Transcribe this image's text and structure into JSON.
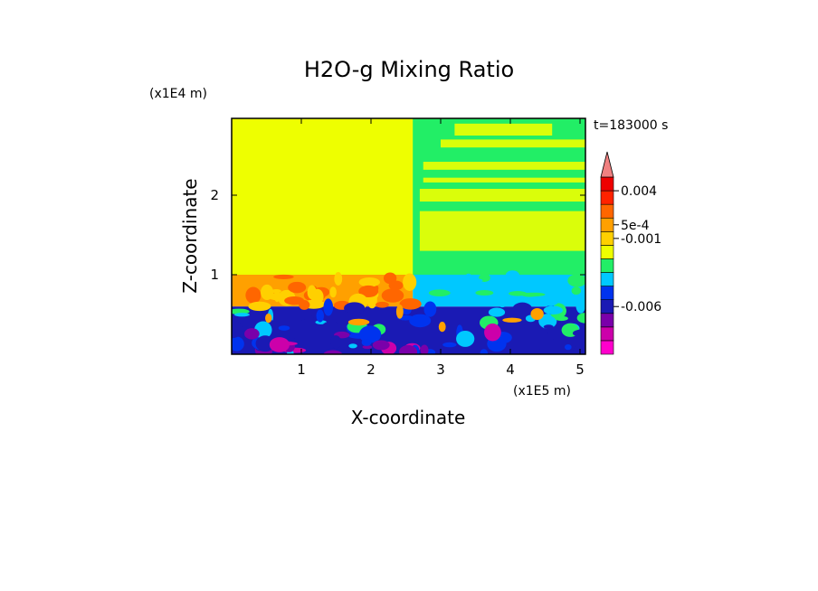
{
  "chart_data": {
    "type": "heatmap",
    "title": "H2O-g Mixing Ratio",
    "xlabel": "X-coordinate",
    "ylabel": "Z-coordinate",
    "x_unit": "(x1E5 m)",
    "y_unit": "(x1E4 m)",
    "time_label": "t=183000 s",
    "xlim": [
      0,
      5.12
    ],
    "ylim": [
      0,
      2.96
    ],
    "x_ticks": [
      {
        "value": 1,
        "label": "1"
      },
      {
        "value": 2,
        "label": "2"
      },
      {
        "value": 3,
        "label": "3"
      },
      {
        "value": 4,
        "label": "4"
      },
      {
        "value": 5,
        "label": "5"
      }
    ],
    "y_ticks": [
      {
        "value": 1,
        "label": "1"
      },
      {
        "value": 2,
        "label": "2"
      }
    ],
    "colorbar": {
      "colors": [
        "#ff00cc",
        "#cc00aa",
        "#7a00aa",
        "#1a1ab4",
        "#0033ee",
        "#00c8ff",
        "#22ee66",
        "#eeff00",
        "#ffd000",
        "#ffa000",
        "#ff6600",
        "#ff2200",
        "#ee0000",
        "#f08080"
      ],
      "labels": [
        {
          "band": 12,
          "text": "0.004"
        },
        {
          "band": 9.5,
          "text": "5e-4"
        },
        {
          "band": 8.5,
          "text": "-0.001"
        },
        {
          "band": 3.5,
          "text": "-0.006"
        }
      ]
    },
    "regions": [
      {
        "name": "upper-troposphere",
        "color": "#eeff00",
        "x": [
          0,
          5.12
        ],
        "z": [
          1.0,
          2.96
        ]
      },
      {
        "name": "boundary-orange",
        "color": "#ffa000",
        "x": [
          0,
          2.6
        ],
        "z": [
          0.6,
          1.0
        ]
      },
      {
        "name": "lower-layer-blue",
        "color": "#1a1ab4",
        "x": [
          0,
          5.12
        ],
        "z": [
          0,
          0.6
        ]
      },
      {
        "name": "right-green-column",
        "color": "#22ee66",
        "x": [
          2.6,
          5.12
        ],
        "z": [
          1.0,
          2.96
        ]
      },
      {
        "name": "right-cyan-band",
        "color": "#00c8ff",
        "x": [
          2.6,
          5.12
        ],
        "z": [
          0.6,
          1.0
        ]
      }
    ]
  }
}
